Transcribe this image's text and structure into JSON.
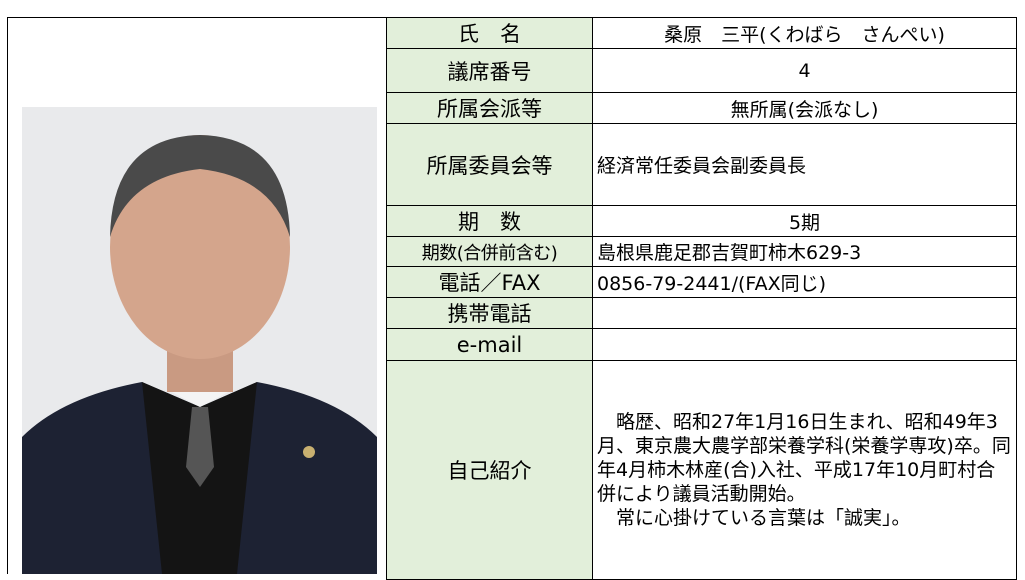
{
  "profile": {
    "rows": [
      {
        "label": "氏　名",
        "value": "桑原　三平(くわばら　さんぺい)"
      },
      {
        "label": "議席番号",
        "value": "4"
      },
      {
        "label": "所属会派等",
        "value": "無所属(会派なし)"
      },
      {
        "label": "所属委員会等",
        "value": "経済常任委員会副委員長"
      },
      {
        "label": "期　数",
        "value": "5期"
      },
      {
        "label": "期数(合併前含む)",
        "value": "島根県鹿足郡吉賀町柿木629-3"
      },
      {
        "label": "電話／FAX",
        "value": "0856-79-2441/(FAX同じ)"
      },
      {
        "label": "携帯電話",
        "value": null
      },
      {
        "label": "e-mail",
        "value": null
      }
    ],
    "intro": {
      "label": "自己紹介",
      "paragraphs": [
        "略歴、昭和27年1月16日生まれ、昭和49年3月、東京農大農学部栄養学科(栄養学専攻)卒。同年4月柿木林産(合)入社、平成17年10月町村合併により議員活動開始。",
        "常に心掛けている言葉は「誠実」。"
      ]
    }
  }
}
